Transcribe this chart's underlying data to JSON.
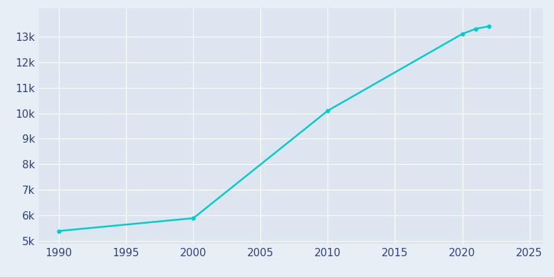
{
  "years": [
    1990,
    2000,
    2010,
    2020,
    2021,
    2022
  ],
  "population": [
    5400,
    5900,
    10100,
    13100,
    13300,
    13400
  ],
  "line_color": "#00CCCC",
  "marker_style": "o",
  "marker_size": 3.5,
  "background_color": "#e8eef5",
  "axes_background": "#dde6f0",
  "grid_color": "#ffffff",
  "tick_label_color": "#2d4080",
  "xlim": [
    1988.5,
    2026
  ],
  "ylim": [
    4900,
    14100
  ],
  "ytick_values": [
    5000,
    6000,
    7000,
    8000,
    9000,
    10000,
    11000,
    12000,
    13000
  ],
  "xtick_values": [
    1990,
    1995,
    2000,
    2005,
    2010,
    2015,
    2020,
    2025
  ],
  "figsize": [
    8.0,
    4.0
  ],
  "dpi": 100,
  "linewidth": 1.8,
  "tick_fontsize": 11
}
